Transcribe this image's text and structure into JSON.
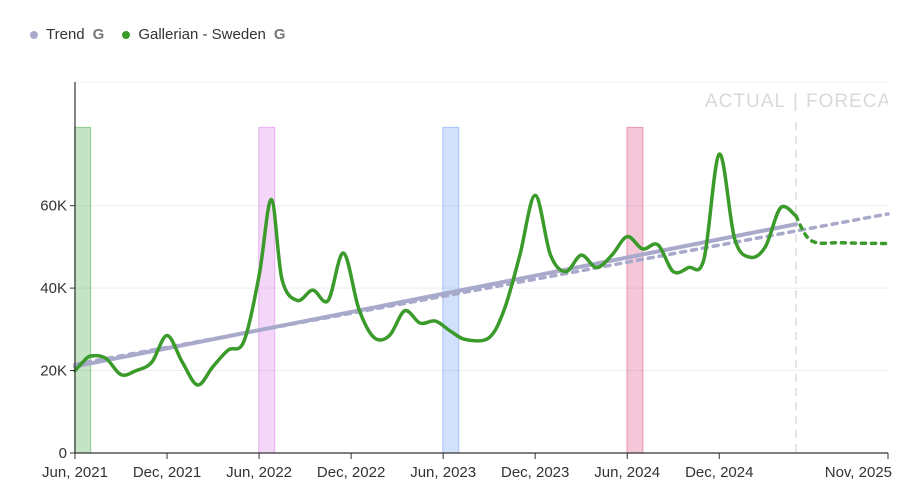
{
  "legend": {
    "trend_label": "Trend",
    "series_label": "Gallerian - Sweden",
    "g_icon_glyph": "G",
    "trend_color": "#a9a9cc",
    "series_color": "#3a9a2a"
  },
  "chart_data": {
    "type": "line",
    "title": "",
    "xlabel": "",
    "ylabel": "",
    "x_ticks": [
      {
        "t": 0,
        "label": "Jun, 2021"
      },
      {
        "t": 6,
        "label": "Dec, 2021"
      },
      {
        "t": 12,
        "label": "Jun, 2022"
      },
      {
        "t": 18,
        "label": "Dec, 2022"
      },
      {
        "t": 24,
        "label": "Jun, 2023"
      },
      {
        "t": 30,
        "label": "Dec, 2023"
      },
      {
        "t": 36,
        "label": "Jun, 2024"
      },
      {
        "t": 42,
        "label": "Dec, 2024"
      },
      {
        "t": 53,
        "label": "Nov, 2025"
      }
    ],
    "y_ticks": [
      {
        "v": 0,
        "label": "0"
      },
      {
        "v": 20000,
        "label": "20K"
      },
      {
        "v": 40000,
        "label": "40K"
      },
      {
        "v": 60000,
        "label": "60K"
      }
    ],
    "xlim": [
      0,
      53
    ],
    "ylim": [
      0,
      90000
    ],
    "region_labels": {
      "actual": "ACTUAL",
      "separator": "|",
      "forecast": "FORECAST"
    },
    "forecast_start": 47,
    "highlight_bands": [
      {
        "t": 0.5,
        "color": "#2e9a2e"
      },
      {
        "t": 12.5,
        "color": "#d66be8"
      },
      {
        "t": 24.5,
        "color": "#5b8ef0"
      },
      {
        "t": 36.5,
        "color": "#d63a78"
      }
    ],
    "band_top_value": 79000,
    "series": [
      {
        "name": "Gallerian - Sweden",
        "kind": "actual",
        "points": [
          [
            0,
            20000
          ],
          [
            0.5,
            22000
          ],
          [
            1,
            23500
          ],
          [
            2,
            23000
          ],
          [
            3,
            19000
          ],
          [
            4,
            20000
          ],
          [
            5,
            22000
          ],
          [
            6,
            28500
          ],
          [
            7,
            22000
          ],
          [
            8,
            16500
          ],
          [
            9,
            21000
          ],
          [
            10,
            25000
          ],
          [
            11,
            27000
          ],
          [
            12,
            43000
          ],
          [
            12.8,
            61500
          ],
          [
            13.5,
            42000
          ],
          [
            14.5,
            37000
          ],
          [
            15.5,
            39500
          ],
          [
            16.5,
            37000
          ],
          [
            17.5,
            48500
          ],
          [
            18.5,
            35000
          ],
          [
            19.5,
            28000
          ],
          [
            20.5,
            28500
          ],
          [
            21.5,
            34500
          ],
          [
            22.5,
            31500
          ],
          [
            23.5,
            32000
          ],
          [
            24.5,
            29500
          ],
          [
            25.5,
            27500
          ],
          [
            27,
            28000
          ],
          [
            28,
            35000
          ],
          [
            29,
            48000
          ],
          [
            30,
            62500
          ],
          [
            31,
            48000
          ],
          [
            32,
            44000
          ],
          [
            33,
            48000
          ],
          [
            34,
            45000
          ],
          [
            35,
            48000
          ],
          [
            36,
            52500
          ],
          [
            37,
            49500
          ],
          [
            38,
            50500
          ],
          [
            39,
            44000
          ],
          [
            40,
            45000
          ],
          [
            41,
            47000
          ],
          [
            42,
            72500
          ],
          [
            43,
            52000
          ],
          [
            44,
            47500
          ],
          [
            45,
            50000
          ],
          [
            46,
            59500
          ],
          [
            47,
            57500
          ]
        ]
      },
      {
        "name": "Gallerian - Sweden forecast",
        "kind": "forecast",
        "points": [
          [
            47,
            57500
          ],
          [
            48,
            51500
          ],
          [
            50,
            51000
          ],
          [
            53,
            50800
          ]
        ]
      },
      {
        "name": "Trend",
        "kind": "trend",
        "points": [
          [
            0,
            21000
          ],
          [
            47,
            55500
          ]
        ]
      },
      {
        "name": "Trend dashed",
        "kind": "trend-dashed",
        "points": [
          [
            0,
            21500
          ],
          [
            53,
            58000
          ]
        ]
      }
    ]
  }
}
